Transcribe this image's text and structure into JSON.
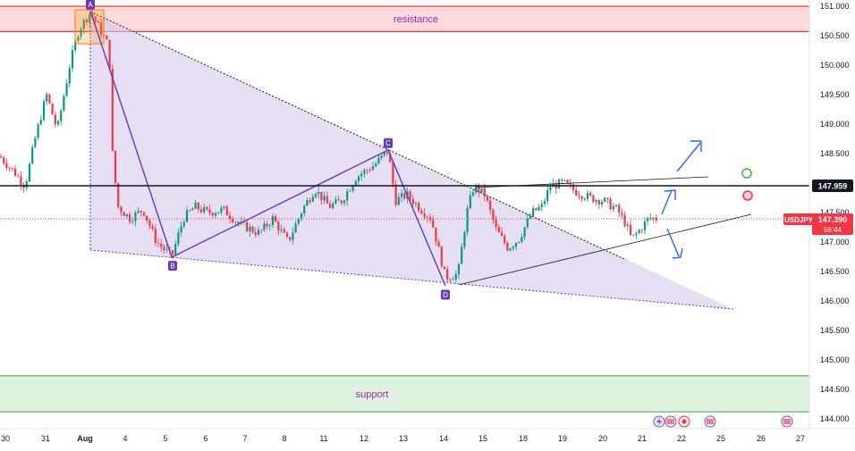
{
  "chart_data": {
    "type": "candlestick",
    "symbol": "USDJPY",
    "last_price": "147.390",
    "countdown": "56:44",
    "key_level": "147.959",
    "y_axis_ticks": [
      "151.000",
      "150.500",
      "150.000",
      "149.500",
      "149.000",
      "148.500",
      "148.000",
      "147.500",
      "147.000",
      "146.500",
      "146.000",
      "145.500",
      "145.000",
      "144.500",
      "144.000"
    ],
    "ylim": [
      144.0,
      151.0
    ],
    "x_axis_ticks": [
      "30",
      "31",
      "Aug",
      "4",
      "5",
      "6",
      "7",
      "8",
      "11",
      "12",
      "13",
      "14",
      "15",
      "18",
      "19",
      "20",
      "21",
      "22",
      "25",
      "26",
      "27"
    ],
    "zones": [
      {
        "name": "resistance",
        "low": 150.57,
        "high": 151.0,
        "color": "#f23645"
      },
      {
        "name": "support",
        "low": 144.12,
        "high": 144.73,
        "color": "#4caf50"
      }
    ],
    "points": [
      {
        "label": "A",
        "date": "Aug 1",
        "price": 150.9
      },
      {
        "label": "B",
        "date": "Aug 5",
        "price": 146.74
      },
      {
        "label": "C",
        "date": "Aug 12",
        "price": 148.55
      },
      {
        "label": "D",
        "date": "Aug 14",
        "price": 146.25
      }
    ],
    "colors": {
      "up": "#089981",
      "down": "#f23645",
      "pattern": "#673ab7",
      "fill": "#d1c4e9"
    }
  }
}
